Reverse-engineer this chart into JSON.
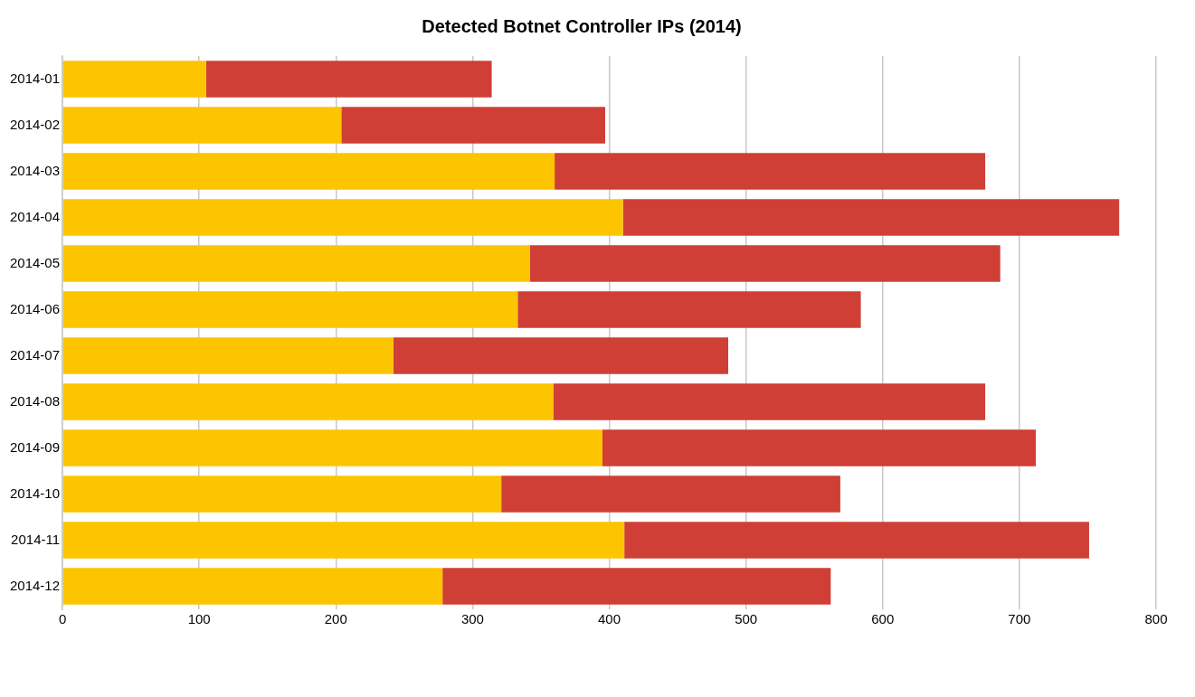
{
  "chart_data": {
    "type": "bar",
    "title": "Detected Botnet Controller IPs (2014)",
    "orientation": "horizontal",
    "stacked": true,
    "categories": [
      "2014-01",
      "2014-02",
      "2014-03",
      "2014-04",
      "2014-05",
      "2014-06",
      "2014-07",
      "2014-08",
      "2014-09",
      "2014-10",
      "2014-11",
      "2014-12"
    ],
    "series": [
      {
        "color": "#fcc500",
        "values": [
          105,
          204,
          360,
          410,
          342,
          333,
          242,
          359,
          395,
          321,
          411,
          278
        ]
      },
      {
        "color": "#cf3f36",
        "values": [
          209,
          193,
          315,
          363,
          344,
          251,
          245,
          316,
          317,
          248,
          340,
          284
        ]
      }
    ],
    "xlim": [
      0,
      800
    ],
    "xticks": [
      0,
      100,
      200,
      300,
      400,
      500,
      600,
      700,
      800
    ],
    "grid": "x",
    "legend": false
  }
}
